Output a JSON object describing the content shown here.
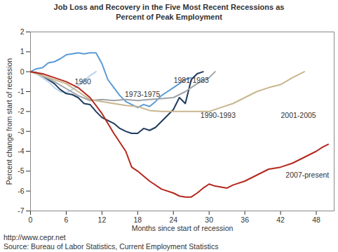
{
  "chart_data": {
    "type": "line",
    "title": [
      "Job Loss and Recovery in the Five Most Recent Recessions as",
      "Percent of Peak Employment"
    ],
    "x_label": "Months since start of recession",
    "y_label": "Percent change from start of recession",
    "xlim": [
      0,
      51
    ],
    "xticks": [
      0,
      6,
      12,
      18,
      24,
      30,
      36,
      42,
      48
    ],
    "ylim": [
      -7,
      2
    ],
    "yticks": [
      -7,
      -6,
      -5,
      -4,
      -3,
      -2,
      -1,
      0,
      1,
      2
    ],
    "grid": false,
    "caption": [
      "http://www.cepr.net",
      "Source: Bureau of Labor Statistics, Current Employment Statistics"
    ],
    "series": [
      {
        "name": "1980",
        "color": "#b7d3ef",
        "x": [
          0,
          1,
          2,
          3,
          4,
          5,
          6,
          7,
          8,
          9,
          10,
          11
        ],
        "values": [
          0,
          -0.1,
          -0.3,
          -0.5,
          -0.8,
          -1.0,
          -1.05,
          -0.9,
          -0.7,
          -0.45,
          -0.2,
          0
        ]
      },
      {
        "name": "1973-1975",
        "color": "#5b9bd5",
        "x": [
          0,
          1,
          2,
          3,
          4,
          5,
          6,
          7,
          8,
          9,
          10,
          11,
          12,
          13,
          14,
          15,
          16,
          17,
          18,
          19,
          20,
          21,
          22,
          23,
          24,
          25,
          26,
          27
        ],
        "values": [
          0,
          0.15,
          0.2,
          0.45,
          0.5,
          0.65,
          0.85,
          0.9,
          0.95,
          0.9,
          0.95,
          0.95,
          0.4,
          -0.4,
          -0.8,
          -1.2,
          -1.5,
          -1.65,
          -1.8,
          -1.65,
          -1.75,
          -1.5,
          -1.2,
          -1.0,
          -0.8,
          -0.6,
          -0.4,
          -0.3
        ]
      },
      {
        "name": "1981-1983",
        "color": "#1f3b5c",
        "x": [
          0,
          1,
          2,
          3,
          4,
          5,
          6,
          7,
          8,
          9,
          10,
          11,
          12,
          13,
          14,
          15,
          16,
          17,
          18,
          19,
          20,
          21,
          22,
          23,
          24,
          25,
          26,
          27,
          28,
          29
        ],
        "values": [
          0,
          -0.05,
          -0.2,
          -0.4,
          -0.6,
          -0.9,
          -1.1,
          -1.15,
          -1.3,
          -1.6,
          -1.65,
          -2.0,
          -2.3,
          -2.45,
          -2.6,
          -2.85,
          -3.0,
          -3.1,
          -3.1,
          -2.85,
          -2.95,
          -2.8,
          -2.5,
          -2.2,
          -1.9,
          -1.3,
          -1.6,
          -0.4,
          -0.1,
          0
        ]
      },
      {
        "name": "1990-1993",
        "color": "#9ea3a8",
        "x": [
          0,
          2,
          4,
          6,
          8,
          10,
          12,
          14,
          16,
          18,
          20,
          22,
          24,
          26,
          28,
          30,
          31
        ],
        "values": [
          0,
          -0.2,
          -0.5,
          -0.85,
          -1.2,
          -1.45,
          -1.4,
          -1.45,
          -1.4,
          -1.45,
          -1.4,
          -1.35,
          -1.3,
          -1.0,
          -0.6,
          -0.3,
          0
        ]
      },
      {
        "name": "2001-2005",
        "color": "#c9b68f",
        "x": [
          0,
          2,
          4,
          6,
          8,
          10,
          12,
          14,
          16,
          18,
          20,
          22,
          24,
          26,
          28,
          30,
          32,
          34,
          36,
          38,
          40,
          42,
          44,
          46
        ],
        "values": [
          0,
          -0.2,
          -0.4,
          -0.6,
          -1.0,
          -1.4,
          -1.5,
          -1.6,
          -1.7,
          -1.75,
          -1.95,
          -2.0,
          -2.0,
          -2.0,
          -2.0,
          -2.0,
          -1.8,
          -1.6,
          -1.3,
          -1.0,
          -0.8,
          -0.65,
          -0.3,
          0
        ]
      },
      {
        "name": "2007-present",
        "color": "#b5281e",
        "x": [
          0,
          2,
          4,
          6,
          8,
          10,
          12,
          14,
          16,
          17,
          18,
          20,
          22,
          24,
          25,
          26,
          27,
          28,
          29,
          30,
          31,
          32,
          33,
          34,
          36,
          38,
          40,
          42,
          44,
          46,
          48,
          49,
          50
        ],
        "values": [
          0,
          -0.1,
          -0.3,
          -0.5,
          -0.8,
          -1.3,
          -2.1,
          -3.1,
          -4.0,
          -4.8,
          -5.0,
          -5.5,
          -5.9,
          -6.1,
          -6.25,
          -6.3,
          -6.3,
          -6.1,
          -5.85,
          -5.65,
          -5.75,
          -5.8,
          -5.85,
          -5.7,
          -5.5,
          -5.2,
          -4.9,
          -4.8,
          -4.6,
          -4.3,
          -4.0,
          -3.8,
          -3.65
        ]
      }
    ]
  }
}
